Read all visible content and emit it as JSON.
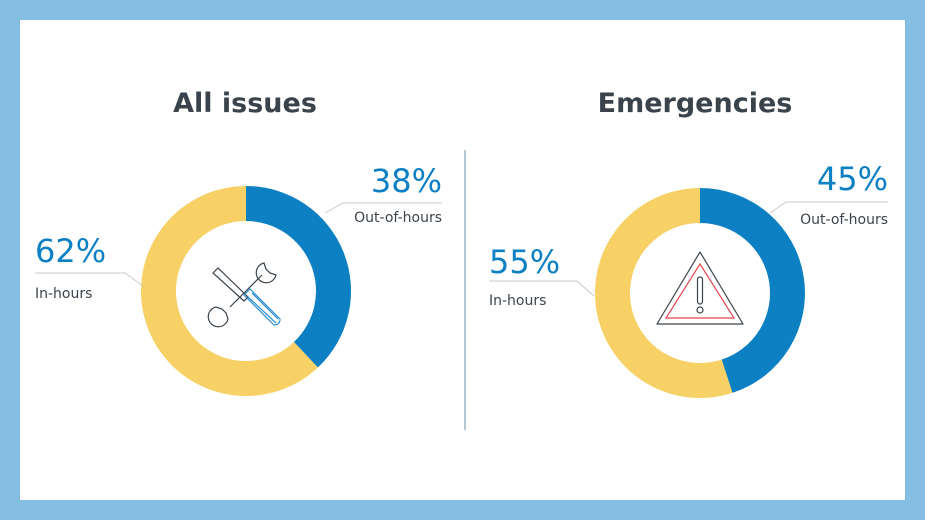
{
  "chart_data": [
    {
      "type": "pie",
      "title": "All issues",
      "categories": [
        "Out-of-hours",
        "In-hours"
      ],
      "values": [
        38,
        62
      ],
      "labels": [
        "38%",
        "62%"
      ],
      "colors": [
        "#0d80c3",
        "#f7d166"
      ],
      "center_icon": "tools-icon"
    },
    {
      "type": "pie",
      "title": "Emergencies",
      "categories": [
        "Out-of-hours",
        "In-hours"
      ],
      "values": [
        45,
        55
      ],
      "labels": [
        "45%",
        "55%"
      ],
      "colors": [
        "#0d80c3",
        "#f7d166"
      ],
      "center_icon": "warning-icon"
    }
  ],
  "colors": {
    "frame": "#85bee3",
    "divider": "#6a8fa8"
  }
}
